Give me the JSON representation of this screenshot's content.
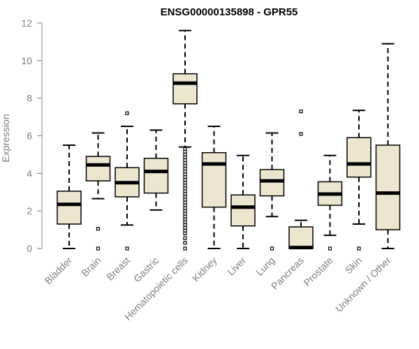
{
  "chart_data": {
    "type": "box",
    "title": "ENSG00000135898 - GPR55",
    "xlabel": "",
    "ylabel": "Expression",
    "ylim": [
      0,
      12
    ],
    "yticks": [
      "0",
      "2",
      "4",
      "6",
      "8",
      "10",
      "12"
    ],
    "box_fill": "#ede6cf",
    "categories": [
      "Bladder",
      "Brain",
      "Breast",
      "Gastric",
      "Hematopoietic cells",
      "Kidney",
      "Liver",
      "Lung",
      "Pancreas",
      "Prostate",
      "Skin",
      "Unknown / Other"
    ],
    "boxes": [
      {
        "min": 0.0,
        "q1": 1.3,
        "median": 2.35,
        "q3": 3.05,
        "max": 5.5,
        "outliers": []
      },
      {
        "min": 2.65,
        "q1": 3.6,
        "median": 4.45,
        "q3": 4.9,
        "max": 6.15,
        "outliers": [
          1.05,
          0.0
        ]
      },
      {
        "min": 1.25,
        "q1": 2.75,
        "median": 3.5,
        "q3": 4.3,
        "max": 6.5,
        "outliers": [
          7.2,
          0.0
        ]
      },
      {
        "min": 2.05,
        "q1": 2.95,
        "median": 4.1,
        "q3": 4.8,
        "max": 6.3,
        "outliers": []
      },
      {
        "min": 5.4,
        "q1": 7.7,
        "median": 8.8,
        "q3": 9.3,
        "max": 11.6,
        "outliers": [
          5.3,
          5.15,
          5.0,
          4.85,
          4.7,
          4.55,
          4.4,
          4.25,
          4.1,
          3.95,
          3.8,
          3.65,
          3.5,
          3.35,
          3.2,
          3.05,
          2.9,
          2.75,
          2.6,
          2.45,
          2.3,
          2.15,
          2.0,
          1.85,
          1.7,
          1.55,
          1.4,
          1.25,
          1.1,
          0.95,
          0.8,
          0.55,
          0.3,
          0.0
        ]
      },
      {
        "min": 0.0,
        "q1": 2.2,
        "median": 4.5,
        "q3": 5.1,
        "max": 6.5,
        "outliers": []
      },
      {
        "min": 0.0,
        "q1": 1.2,
        "median": 2.2,
        "q3": 2.85,
        "max": 4.95,
        "outliers": []
      },
      {
        "min": 1.7,
        "q1": 2.8,
        "median": 3.6,
        "q3": 4.2,
        "max": 6.15,
        "outliers": [
          0.0
        ]
      },
      {
        "min": 0.0,
        "q1": 0.0,
        "median": 0.05,
        "q3": 1.15,
        "max": 1.5,
        "outliers": [
          6.1,
          7.3
        ]
      },
      {
        "min": 0.7,
        "q1": 2.3,
        "median": 2.9,
        "q3": 3.55,
        "max": 4.95,
        "outliers": [
          0.0
        ]
      },
      {
        "min": 1.3,
        "q1": 3.8,
        "median": 4.5,
        "q3": 5.9,
        "max": 7.35,
        "outliers": [
          0.0
        ]
      },
      {
        "min": 0.0,
        "q1": 1.0,
        "median": 2.95,
        "q3": 5.5,
        "max": 10.9,
        "outliers": []
      }
    ]
  }
}
